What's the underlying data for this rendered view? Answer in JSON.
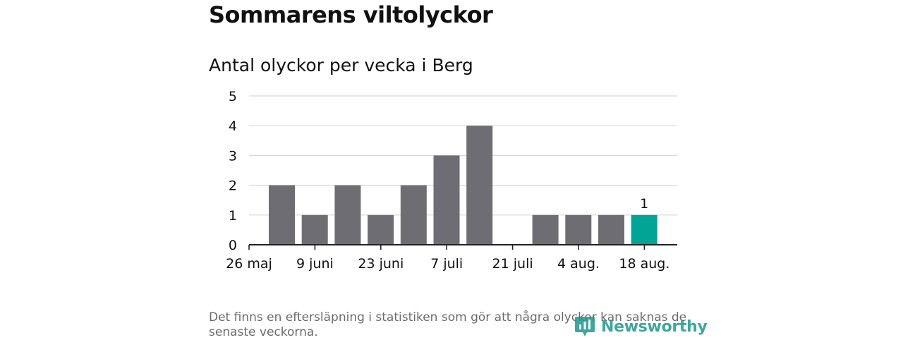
{
  "headline": "Sommarens viltolyckor",
  "chart_data": {
    "type": "bar",
    "title": "Antal olyckor per vecka i Berg",
    "xlabel": "",
    "ylabel": "",
    "ylim": [
      0,
      5
    ],
    "y_ticks": [
      "0",
      "1",
      "2",
      "3",
      "4",
      "5"
    ],
    "x_tick_labels": [
      "26 maj",
      "9 juni",
      "23 juni",
      "7 juli",
      "21 juli",
      "4 aug.",
      "18 aug."
    ],
    "categories": [
      "2 juni",
      "9 juni",
      "16 juni",
      "23 juni",
      "30 juni",
      "7 juli",
      "14 juli",
      "21 juli",
      "28 juli",
      "4 aug.",
      "11 aug.",
      "18 aug."
    ],
    "values": [
      2,
      1,
      2,
      1,
      2,
      3,
      4,
      0,
      1,
      1,
      1,
      1
    ],
    "highlight_index": 11,
    "highlight_label": "1",
    "grid": true,
    "colors": {
      "bar": "#6e6d73",
      "highlight": "#00a596",
      "grid": "#d8d8d8",
      "axis": "#222222"
    }
  },
  "footnote": "Det finns en eftersläpning i statistiken som gör att några olyckor kan saknas de senaste veckorna.",
  "logo": {
    "text": "Newsworthy",
    "icon": "newsworthy-logo-icon",
    "color": "#1a9a8a"
  }
}
